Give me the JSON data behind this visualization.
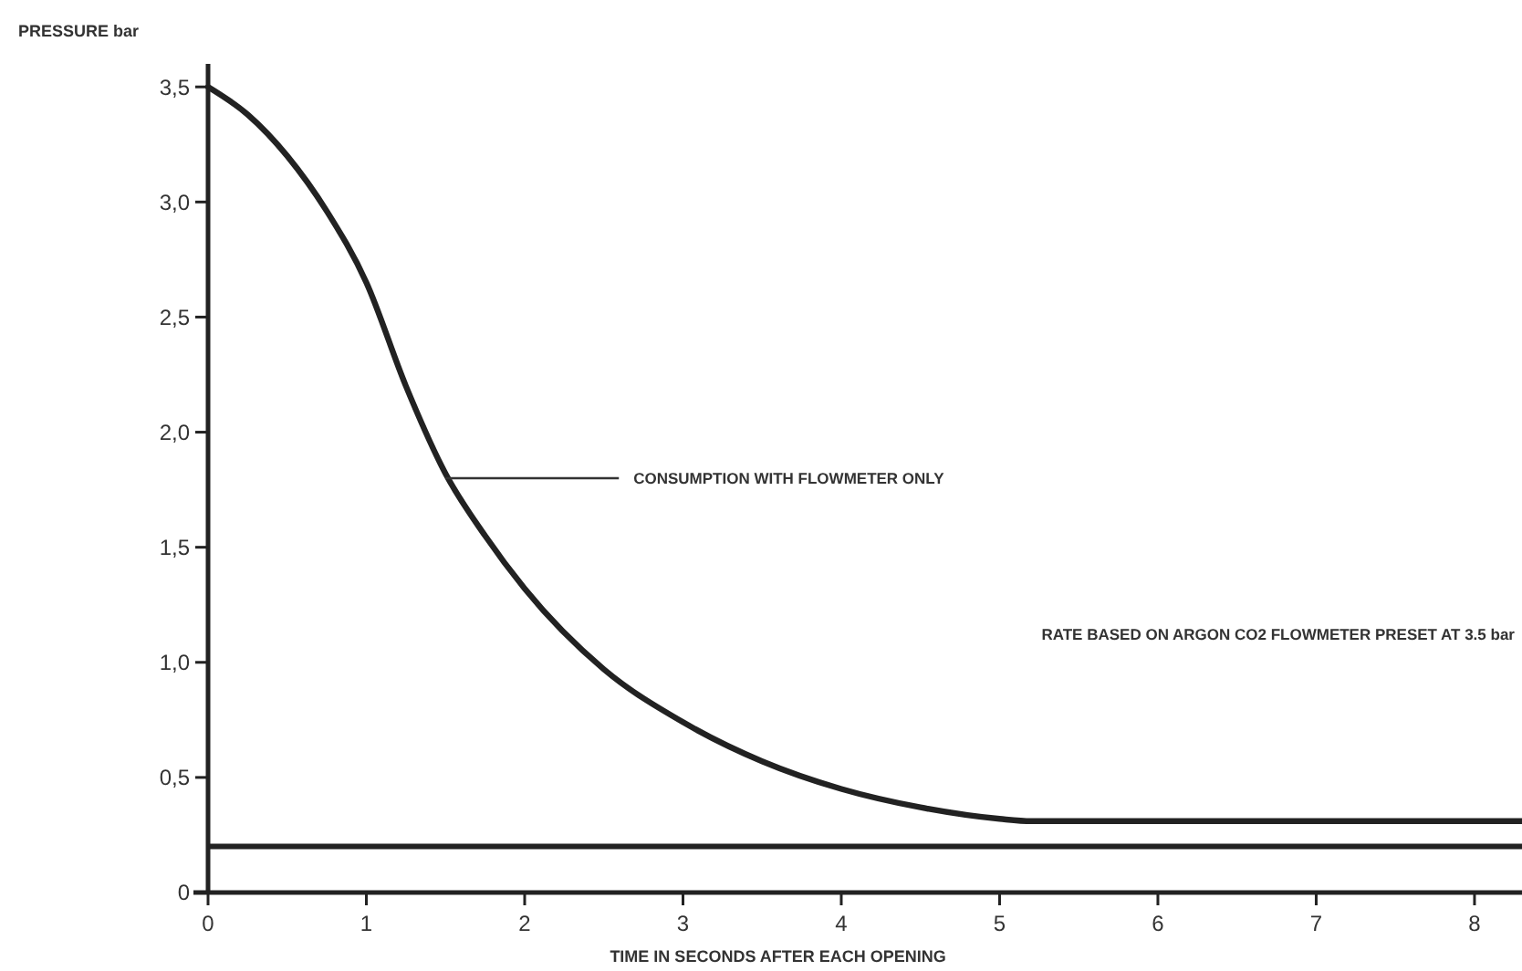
{
  "chart_data": {
    "type": "line",
    "xlabel": "TIME IN SECONDS AFTER EACH OPENING",
    "ylabel": "PRESSURE bar",
    "series": [
      {
        "color": "#222222",
        "x": [
          0,
          0.25,
          0.5,
          0.75,
          1,
          1.25,
          1.5,
          1.75,
          2,
          2.5,
          3,
          3.5,
          4,
          4.5,
          5,
          5.2,
          8.3
        ],
        "values": [
          3.5,
          3.38,
          3.2,
          2.96,
          2.65,
          2.2,
          1.82,
          1.55,
          1.32,
          0.97,
          0.74,
          0.57,
          0.45,
          0.37,
          0.32,
          0.31,
          0.31
        ]
      }
    ],
    "ref_lines": [
      {
        "axis": "y",
        "value": 0.2,
        "color": "#222222"
      }
    ],
    "annotations": [
      {
        "text": "CONSUMPTION WITH FLOWMETER ONLY",
        "x": 1.5,
        "y": 1.8
      },
      "RATE BASED ON ARGON CO2 FLOWMETER PRESET AT 3.5 bar"
    ],
    "xlim": [
      0,
      8.3
    ],
    "ylim": [
      0,
      3.6
    ],
    "xticks": [
      0,
      1,
      2,
      3,
      4,
      5,
      6,
      7,
      8
    ],
    "yticks": [
      0,
      {
        "value": 0.5,
        "label": "0,5"
      },
      {
        "value": 1,
        "label": "1,0"
      },
      {
        "value": 1.5,
        "label": "1,5"
      },
      {
        "value": 2,
        "label": "2,0"
      },
      {
        "value": 2.5,
        "label": "2,5"
      },
      {
        "value": 3,
        "label": "3,0"
      },
      {
        "value": 3.5,
        "label": "3,5"
      }
    ],
    "grid": false,
    "marker": "none",
    "line_style": "solid"
  }
}
